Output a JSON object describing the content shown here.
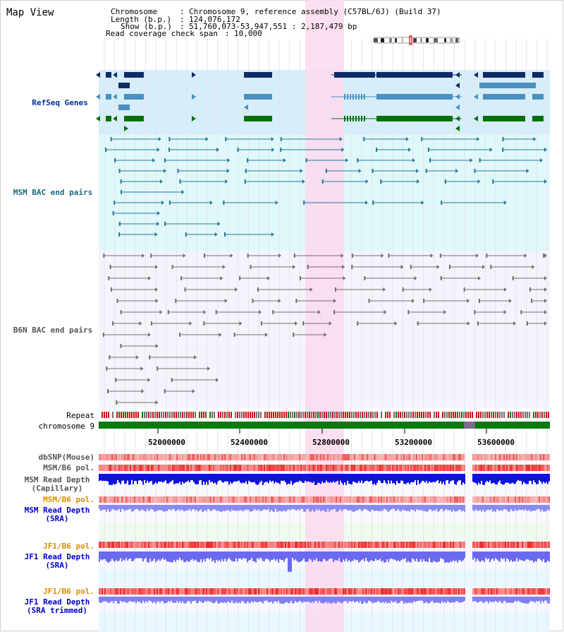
{
  "app_title": "Map View",
  "info": {
    "chromosome_key": "Chromosome",
    "chromosome_value": "Chromosome 9, reference assembly (C57BL/6J) (Build 37)",
    "length_key": "Length (b.p.)",
    "length_value": "124,076,172",
    "show_key": "Show (b.p.)",
    "show_value": "51,760,073-53,947,551 : 2,187,479 bp",
    "coverage_key": "Read coverage check span",
    "coverage_value": "10,000"
  },
  "tracks": {
    "refseq": "RefSeq Genes",
    "msm_bac": "MSM BAC end pairs",
    "b6n_bac": "B6N BAC end pairs",
    "repeat": "Repeat",
    "chromosome": "chromosome 9",
    "dbsnp": "dbSNP(Mouse)",
    "msm_b6_pol_1": "MSM/B6 pol.",
    "msm_read_depth_cap_1": "MSM Read Depth",
    "msm_read_depth_cap_2": "(Capillary)",
    "msm_b6_pol_2": "MSM/B6 pol.",
    "msm_read_depth_sra_1": "MSM Read Depth",
    "msm_read_depth_sra_2": "(SRA)",
    "jf1_b6_pol_1": "JF1/B6 pol.",
    "jf1_read_depth_sra_1": "JF1 Read Depth",
    "jf1_read_depth_sra_2": "(SRA)",
    "jf1_b6_pol_2": "JF1/B6 pol.",
    "jf1_read_depth_trim_1": "JF1 Read Depth",
    "jf1_read_depth_trim_2": "(SRA trimmed)"
  },
  "axis": {
    "tick_labels": [
      "52000000",
      "52400000",
      "52800000",
      "53200000",
      "53600000"
    ]
  },
  "colors": {
    "refseq_bg": "#d6eef9",
    "msm_bg": "#e0f8fa",
    "b6n_bg": "#f4f4fc",
    "highlight": "#fbd9ef",
    "refseq_dark": "#0f2a66",
    "refseq_mid": "#4a90c0",
    "refseq_green": "#087008",
    "msm_pairs": "#1f7a99",
    "b6n_pairs": "#707070",
    "label_blue": "#003399",
    "label_teal": "#1a6a80",
    "label_orange": "#e08a00",
    "label_navy": "#0000cc",
    "chrom_green": "#0a7a0a"
  }
}
